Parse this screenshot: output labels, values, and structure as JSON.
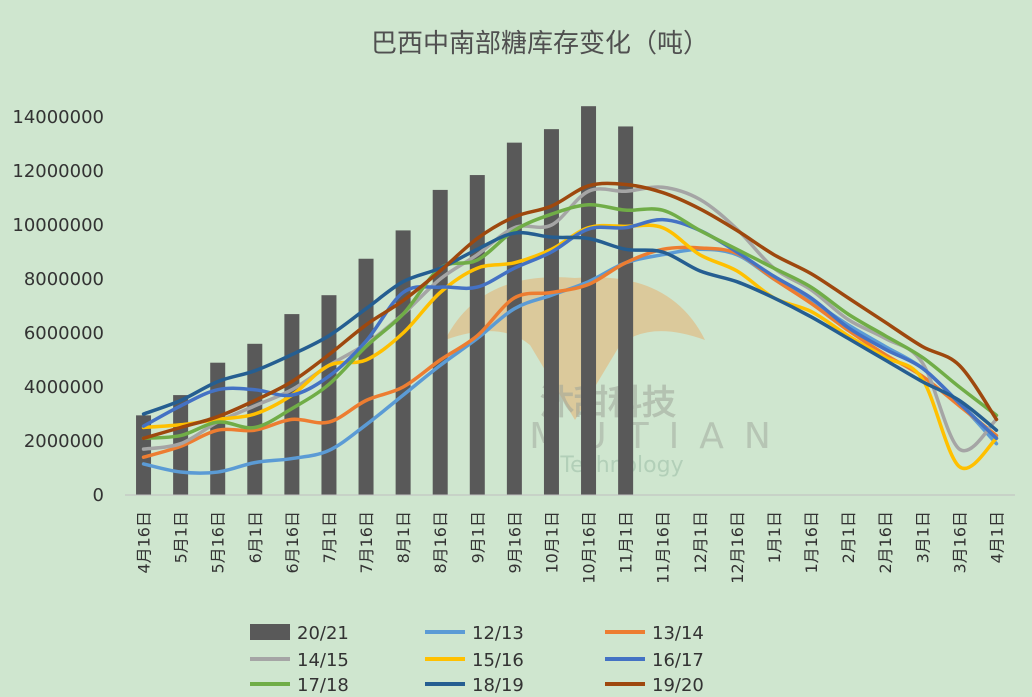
{
  "chart_data": {
    "type": "bar+line",
    "title": "巴西中南部糖库存变化（吨）",
    "categories": [
      "4月16日",
      "5月1日",
      "5月16日",
      "6月1日",
      "6月16日",
      "7月1日",
      "7月16日",
      "8月1日",
      "8月16日",
      "9月1日",
      "9月16日",
      "10月1日",
      "10月16日",
      "11月1日",
      "11月16日",
      "12月1日",
      "12月16日",
      "1月1日",
      "1月16日",
      "2月1日",
      "2月16日",
      "3月1日",
      "3月16日",
      "4月1日"
    ],
    "ylim": [
      0,
      14000000
    ],
    "yticks": [
      "0",
      "2000000",
      "4000000",
      "6000000",
      "8000000",
      "10000000",
      "12000000",
      "14000000"
    ],
    "ytick_values": [
      0,
      2000000,
      4000000,
      6000000,
      8000000,
      10000000,
      12000000,
      14000000
    ],
    "grid": false,
    "legend_position": "bottom",
    "bars": {
      "name": "20/21",
      "color": "#595959",
      "values": [
        2950000,
        3700000,
        4900000,
        5600000,
        6700000,
        7400000,
        8750000,
        9800000,
        11300000,
        11850000,
        13050000,
        13550000,
        14400000,
        13650000
      ]
    },
    "series": [
      {
        "name": "12/13",
        "color": "#5b9bd5",
        "values": [
          1150000,
          850000,
          850000,
          1200000,
          1350000,
          1650000,
          2600000,
          3700000,
          4800000,
          5800000,
          6900000,
          7400000,
          7900000,
          8600000,
          8900000,
          9100000,
          8900000,
          8000000,
          7200000,
          6300000,
          5500000,
          4700000,
          3400000,
          1900000
        ]
      },
      {
        "name": "13/14",
        "color": "#ed7d31",
        "values": [
          1400000,
          1800000,
          2400000,
          2400000,
          2800000,
          2700000,
          3500000,
          4000000,
          5000000,
          5900000,
          7300000,
          7500000,
          7800000,
          8600000,
          9100000,
          9150000,
          8950000,
          8000000,
          7100000,
          6100000,
          5200000,
          4400000,
          3300000,
          2200000
        ]
      },
      {
        "name": "14/15",
        "color": "#a5a5a5",
        "values": [
          1700000,
          1900000,
          2700000,
          3300000,
          3900000,
          4800000,
          5600000,
          6700000,
          8000000,
          8900000,
          9900000,
          10000000,
          11250000,
          11250000,
          11400000,
          10950000,
          9850000,
          8400000,
          7600000,
          6500000,
          5800000,
          4900000,
          1700000,
          2800000
        ]
      },
      {
        "name": "15/16",
        "color": "#ffc000",
        "values": [
          2500000,
          2600000,
          2800000,
          3000000,
          3700000,
          4800000,
          5000000,
          6000000,
          7500000,
          8400000,
          8600000,
          9100000,
          9900000,
          9950000,
          9900000,
          8900000,
          8300000,
          7300000,
          6800000,
          5900000,
          5100000,
          4300000,
          1050000,
          2100000
        ]
      },
      {
        "name": "16/17",
        "color": "#4472c4",
        "values": [
          2550000,
          3300000,
          3900000,
          3900000,
          3700000,
          4400000,
          5700000,
          7500000,
          7700000,
          7700000,
          8400000,
          9000000,
          9850000,
          9900000,
          10200000,
          9800000,
          9000000,
          8100000,
          7300000,
          6200000,
          5400000,
          4700000,
          3400000,
          2100000
        ]
      },
      {
        "name": "17/18",
        "color": "#70ad47",
        "values": [
          2100000,
          2200000,
          2700000,
          2500000,
          3200000,
          4100000,
          5500000,
          6700000,
          8400000,
          8700000,
          9800000,
          10400000,
          10750000,
          10550000,
          10550000,
          9800000,
          9100000,
          8400000,
          7700000,
          6700000,
          5900000,
          5100000,
          4000000,
          2950000
        ]
      },
      {
        "name": "18/19",
        "color": "#255e91",
        "values": [
          3000000,
          3500000,
          4200000,
          4600000,
          5200000,
          5900000,
          6900000,
          7900000,
          8400000,
          9100000,
          9700000,
          9550000,
          9500000,
          9100000,
          9000000,
          8300000,
          7900000,
          7300000,
          6600000,
          5800000,
          5000000,
          4200000,
          3500000,
          2400000
        ]
      },
      {
        "name": "19/20",
        "color": "#9e480e",
        "values": [
          2100000,
          2500000,
          2900000,
          3500000,
          4200000,
          5200000,
          6300000,
          7200000,
          8300000,
          9500000,
          10300000,
          10700000,
          11450000,
          11500000,
          11200000,
          10600000,
          9800000,
          8900000,
          8200000,
          7300000,
          6400000,
          5500000,
          4800000,
          2800000
        ]
      }
    ]
  },
  "watermark": {
    "cn": "沐甜科技",
    "en": "MUTIAN",
    "sub": "Technology",
    "color": "#e8a65c"
  }
}
